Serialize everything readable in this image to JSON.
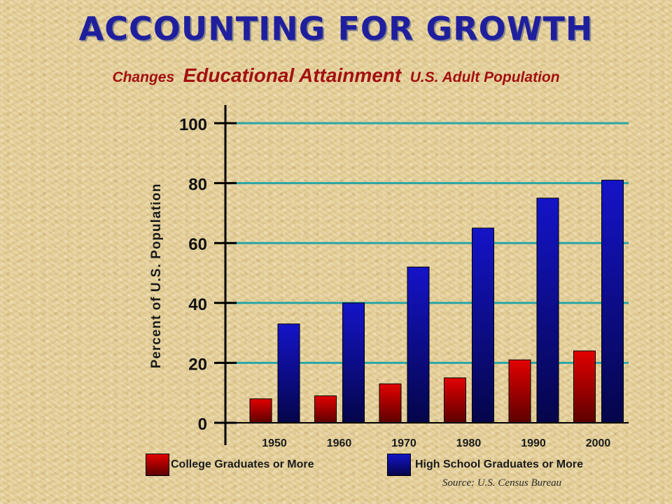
{
  "title": "ACCOUNTING FOR GROWTH",
  "subtitle": {
    "part1": "Changes",
    "part2": "Educational Attainment",
    "part3": "U.S. Adult Population"
  },
  "source": "Source:  U.S. Census Bureau",
  "colors": {
    "college": "#b30000",
    "high_school": "#0a0a9a",
    "gridline": "#2aa6a6",
    "title": "#1f1f9e",
    "subtitle": "#a31010"
  },
  "chart_data": {
    "type": "bar",
    "title": "",
    "xlabel": "",
    "ylabel": "Percent of U.S. Population",
    "ylim": [
      0,
      100
    ],
    "yticks": [
      0,
      20,
      40,
      60,
      80,
      100
    ],
    "categories": [
      "1950",
      "1960",
      "1970",
      "1980",
      "1990",
      "2000"
    ],
    "grid": true,
    "legend_position": "bottom",
    "series": [
      {
        "name": "College Graduates or More",
        "values": [
          8,
          9,
          13,
          15,
          21,
          24
        ]
      },
      {
        "name": "High School Graduates or More",
        "values": [
          33,
          40,
          52,
          65,
          75,
          81
        ]
      }
    ]
  }
}
